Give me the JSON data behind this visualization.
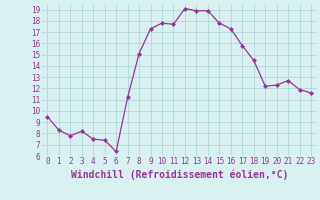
{
  "hours": [
    0,
    1,
    2,
    3,
    4,
    5,
    6,
    7,
    8,
    9,
    10,
    11,
    12,
    13,
    14,
    15,
    16,
    17,
    18,
    19,
    20,
    21,
    22,
    23
  ],
  "values": [
    9.5,
    8.3,
    7.8,
    8.2,
    7.5,
    7.4,
    6.4,
    11.2,
    15.1,
    17.3,
    17.8,
    17.7,
    19.1,
    18.9,
    18.9,
    17.8,
    17.3,
    15.8,
    14.5,
    12.2,
    12.3,
    12.7,
    11.9,
    11.6
  ],
  "line_color": "#993399",
  "marker": "D",
  "marker_size": 2,
  "bg_color": "#d8f0f0",
  "grid_color": "#b0d8d8",
  "xlabel": "Windchill (Refroidissement éolien,°C)",
  "ylim": [
    6,
    19.5
  ],
  "xlim": [
    -0.5,
    23.5
  ],
  "yticks": [
    6,
    7,
    8,
    9,
    10,
    11,
    12,
    13,
    14,
    15,
    16,
    17,
    18,
    19
  ],
  "xticks": [
    0,
    1,
    2,
    3,
    4,
    5,
    6,
    7,
    8,
    9,
    10,
    11,
    12,
    13,
    14,
    15,
    16,
    17,
    18,
    19,
    20,
    21,
    22,
    23
  ],
  "tick_color": "#993399",
  "tick_fontsize": 5.5,
  "xlabel_fontsize": 7.0,
  "xlabel_color": "#993399"
}
